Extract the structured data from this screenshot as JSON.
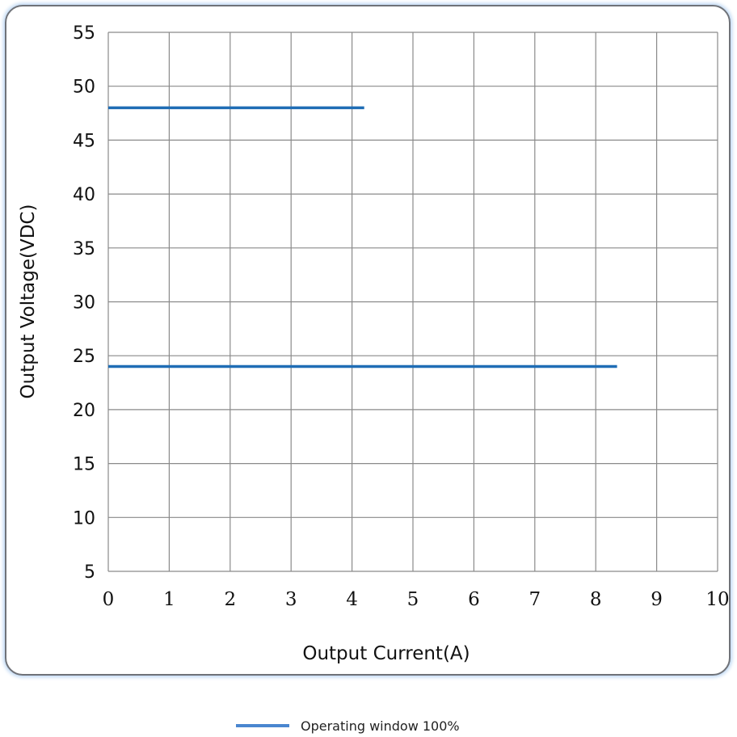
{
  "chart_data": {
    "type": "line",
    "xlabel": "Output Current(A)",
    "ylabel": "Output Voltage(VDC)",
    "xlim": [
      0,
      10
    ],
    "ylim": [
      5,
      55
    ],
    "x_ticks": [
      "0",
      "1",
      "2",
      "3",
      "4",
      "5",
      "6",
      "7",
      "8",
      "9",
      "10"
    ],
    "y_ticks": [
      "55",
      "50",
      "45",
      "40",
      "35",
      "30",
      "25",
      "20",
      "15",
      "10",
      "5"
    ],
    "grid": true,
    "legend_position": "bottom-center",
    "legend": [
      "Operating window 100%"
    ],
    "series": [
      {
        "segments": [
          {
            "x": [
              0,
              4.2
            ],
            "y": [
              48,
              48
            ]
          },
          {
            "x": [
              0,
              8.35
            ],
            "y": [
              24,
              24
            ]
          }
        ],
        "color": "#1f6db5"
      }
    ],
    "legend_color": "#4a86cf"
  }
}
